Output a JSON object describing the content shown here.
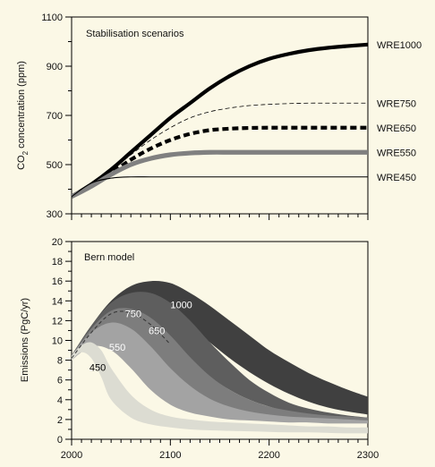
{
  "chart_data": [
    {
      "type": "line",
      "title": "Stabilisation scenarios",
      "ylabel": "CO2 concentration (ppm)",
      "ylabel_main": "CO",
      "ylabel_sub": "2",
      "ylabel_rest": " concentration (ppm)",
      "xlim": [
        2000,
        2300
      ],
      "ylim": [
        300,
        1100
      ],
      "yticks": [
        300,
        500,
        700,
        900,
        1100
      ],
      "yticks_labels": [
        "300",
        "500",
        "700",
        "900",
        "1100"
      ],
      "grid": false,
      "series": [
        {
          "name": "WRE1000",
          "style": "thick-solid",
          "color": "#000000",
          "x": [
            2000,
            2020,
            2040,
            2060,
            2080,
            2100,
            2120,
            2140,
            2160,
            2180,
            2200,
            2220,
            2240,
            2260,
            2280,
            2300
          ],
          "y": [
            370,
            420,
            480,
            550,
            620,
            690,
            750,
            810,
            860,
            900,
            930,
            950,
            965,
            975,
            982,
            988
          ]
        },
        {
          "name": "WRE750",
          "style": "thin-dashed",
          "color": "#000000",
          "x": [
            2000,
            2020,
            2040,
            2060,
            2080,
            2100,
            2120,
            2140,
            2160,
            2180,
            2200,
            2220,
            2240,
            2260,
            2280,
            2300
          ],
          "y": [
            370,
            418,
            475,
            540,
            600,
            650,
            690,
            715,
            730,
            740,
            745,
            748,
            750,
            750,
            750,
            750
          ]
        },
        {
          "name": "WRE650",
          "style": "thick-dashed",
          "color": "#000000",
          "x": [
            2000,
            2020,
            2040,
            2060,
            2080,
            2100,
            2120,
            2140,
            2160,
            2180,
            2200,
            2220,
            2240,
            2260,
            2280,
            2300
          ],
          "y": [
            370,
            415,
            465,
            520,
            565,
            600,
            625,
            640,
            646,
            649,
            650,
            650,
            650,
            650,
            650,
            650
          ]
        },
        {
          "name": "WRE550",
          "style": "thick-gray",
          "color": "#808080",
          "x": [
            2000,
            2020,
            2040,
            2060,
            2080,
            2100,
            2120,
            2140,
            2160,
            2180,
            2200,
            2220,
            2240,
            2260,
            2280,
            2300
          ],
          "y": [
            370,
            412,
            460,
            500,
            525,
            540,
            547,
            550,
            550,
            550,
            550,
            550,
            550,
            550,
            550,
            550
          ]
        },
        {
          "name": "WRE450",
          "style": "thin-solid",
          "color": "#000000",
          "x": [
            2000,
            2020,
            2040,
            2060,
            2080,
            2100,
            2120,
            2140,
            2160,
            2180,
            2200,
            2220,
            2240,
            2260,
            2280,
            2300
          ],
          "y": [
            370,
            425,
            445,
            450,
            450,
            450,
            450,
            450,
            450,
            450,
            450,
            450,
            450,
            450,
            450,
            450
          ]
        }
      ]
    },
    {
      "type": "area",
      "title": "Bern model",
      "ylabel": "Emissions (PgC/yr)",
      "xlabel": "",
      "xlim": [
        2000,
        2300
      ],
      "ylim": [
        0,
        20
      ],
      "xticks": [
        2000,
        2100,
        2200,
        2300
      ],
      "xticks_labels": [
        "2000",
        "2100",
        "2200",
        "2300"
      ],
      "yticks": [
        0,
        2,
        4,
        6,
        8,
        10,
        12,
        14,
        16,
        18,
        20
      ],
      "yticks_labels": [
        "0",
        "2",
        "4",
        "6",
        "8",
        "10",
        "12",
        "14",
        "16",
        "18",
        "20"
      ],
      "grid": false,
      "series": [
        {
          "name": "1000",
          "color": "#404040",
          "x": [
            2000,
            2020,
            2040,
            2060,
            2080,
            2100,
            2120,
            2140,
            2160,
            2180,
            2200,
            2220,
            2240,
            2260,
            2280,
            2300
          ],
          "upper": [
            8.5,
            11.5,
            14.0,
            15.5,
            16.0,
            15.8,
            14.8,
            13.5,
            12.0,
            10.5,
            9.0,
            7.8,
            6.7,
            5.8,
            5.0,
            4.3
          ],
          "lower": [
            8.0,
            10.5,
            12.5,
            13.5,
            13.5,
            12.8,
            11.5,
            9.8,
            8.2,
            6.8,
            5.6,
            4.6,
            3.8,
            3.2,
            2.8,
            2.5
          ]
        },
        {
          "name": "750",
          "color": "#5e5e5e",
          "x": [
            2000,
            2020,
            2040,
            2060,
            2080,
            2100,
            2120,
            2140,
            2160,
            2180,
            2200,
            2220,
            2240,
            2260,
            2280,
            2300
          ],
          "upper": [
            8.5,
            11.5,
            13.8,
            14.8,
            14.8,
            13.8,
            12.0,
            9.8,
            7.8,
            6.0,
            4.7,
            3.7,
            3.1,
            2.7,
            2.4,
            2.2
          ],
          "lower": [
            8.0,
            10.3,
            12.0,
            12.3,
            11.5,
            10.0,
            8.0,
            6.3,
            5.0,
            4.0,
            3.3,
            2.8,
            2.5,
            2.3,
            2.1,
            2.0
          ]
        },
        {
          "name": "650",
          "color": "#7d7d7d",
          "x": [
            2000,
            2020,
            2040,
            2060,
            2080,
            2100,
            2120,
            2140,
            2160,
            2180,
            2200,
            2220,
            2240,
            2260,
            2280,
            2300
          ],
          "upper": [
            8.5,
            11.2,
            13.0,
            13.2,
            12.3,
            10.5,
            8.3,
            6.4,
            5.0,
            4.0,
            3.3,
            2.9,
            2.6,
            2.4,
            2.3,
            2.2
          ],
          "lower": [
            8.0,
            10.0,
            10.8,
            10.0,
            8.2,
            6.2,
            4.6,
            3.6,
            3.0,
            2.6,
            2.4,
            2.2,
            2.1,
            2.0,
            1.9,
            1.9
          ]
        },
        {
          "name": "550",
          "color": "#a3a3a3",
          "x": [
            2000,
            2020,
            2040,
            2060,
            2080,
            2100,
            2120,
            2140,
            2160,
            2180,
            2200,
            2220,
            2240,
            2260,
            2280,
            2300
          ],
          "upper": [
            8.5,
            10.8,
            11.8,
            11.2,
            9.4,
            7.2,
            5.4,
            4.1,
            3.3,
            2.8,
            2.5,
            2.3,
            2.2,
            2.1,
            2.0,
            1.9
          ],
          "lower": [
            8.0,
            9.4,
            9.0,
            7.2,
            5.0,
            3.5,
            2.7,
            2.3,
            2.0,
            1.9,
            1.8,
            1.7,
            1.7,
            1.6,
            1.6,
            1.6
          ]
        },
        {
          "name": "450",
          "color": "#dcdcd2",
          "x": [
            2000,
            2010,
            2020,
            2030,
            2040,
            2060,
            2080,
            2100,
            2120,
            2140,
            2160,
            2180,
            2200,
            2220,
            2240,
            2260,
            2280,
            2300
          ],
          "upper": [
            8.5,
            9.5,
            9.8,
            9.0,
            7.2,
            4.5,
            3.0,
            2.3,
            2.0,
            1.8,
            1.7,
            1.6,
            1.5,
            1.4,
            1.3,
            1.3,
            1.2,
            1.2
          ],
          "lower": [
            8.0,
            8.8,
            8.2,
            6.3,
            4.0,
            2.2,
            1.5,
            1.2,
            1.0,
            0.9,
            0.85,
            0.8,
            0.75,
            0.7,
            0.7,
            0.65,
            0.6,
            0.6
          ]
        }
      ],
      "dashed_median": {
        "color": "#333333",
        "x": [
          2000,
          2020,
          2040,
          2060,
          2080,
          2100
        ],
        "y": [
          8.2,
          10.8,
          12.7,
          12.8,
          11.6,
          9.6
        ]
      },
      "annotations": [
        {
          "text": "1000",
          "x": 2100,
          "y": 13.6,
          "color": "#ffffff"
        },
        {
          "text": "750",
          "x": 2054,
          "y": 12.7,
          "color": "#ffffff"
        },
        {
          "text": "650",
          "x": 2078,
          "y": 11.0,
          "color": "#ffffff"
        },
        {
          "text": "550",
          "x": 2038,
          "y": 9.3,
          "color": "#ffffff"
        },
        {
          "text": "450",
          "x": 2018,
          "y": 7.3,
          "color": "#000000"
        }
      ]
    }
  ]
}
